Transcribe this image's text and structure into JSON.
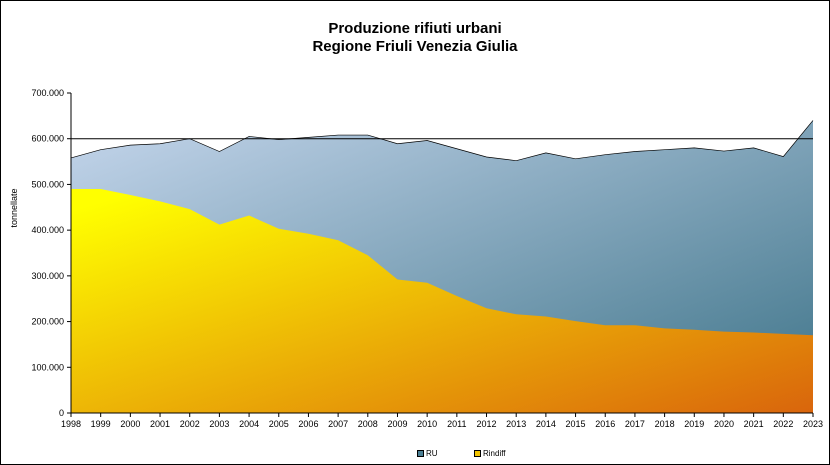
{
  "title_line1": "Produzione rifiuti urbani",
  "title_line2": "Regione Friuli Venezia Giulia",
  "colors": {
    "ru_top": "#c5d6ec",
    "ru_bottom": "#3d7388",
    "rindiff_top": "#ffff00",
    "rindiff_bottom": "#d9650c",
    "swatch_ru": "#4a7f94",
    "swatch_rindiff": "#f2c400"
  },
  "chart_data": {
    "type": "area",
    "title": "Produzione rifiuti urbani Regione Friuli Venezia Giulia",
    "xlabel": "",
    "ylabel": "tonnellate",
    "ylim": [
      0,
      700000
    ],
    "y_ticks": [
      0,
      100000,
      200000,
      300000,
      400000,
      500000,
      600000,
      700000
    ],
    "y_tick_labels": [
      "0",
      "100.000",
      "200.000",
      "300.000",
      "400.000",
      "500.000",
      "600.000",
      "700.000"
    ],
    "reference_line": 600000,
    "grid": false,
    "legend_position": "bottom",
    "categories": [
      "1998",
      "1999",
      "2000",
      "2001",
      "2002",
      "2003",
      "2004",
      "2005",
      "2006",
      "2007",
      "2008",
      "2009",
      "2010",
      "2011",
      "2012",
      "2013",
      "2014",
      "2015",
      "2016",
      "2017",
      "2018",
      "2019",
      "2020",
      "2021",
      "2022",
      "2023"
    ],
    "series": [
      {
        "name": "RU",
        "values": [
          558000,
          576000,
          586000,
          589000,
          600000,
          572000,
          605000,
          598000,
          603000,
          608000,
          608000,
          589000,
          596000,
          578000,
          560000,
          552000,
          569000,
          556000,
          565000,
          572000,
          576000,
          580000,
          573000,
          580000,
          561000,
          640000
        ]
      },
      {
        "name": "Rindiff",
        "values": [
          490000,
          490000,
          477000,
          463000,
          446000,
          412000,
          432000,
          403000,
          392000,
          378000,
          345000,
          292000,
          285000,
          256000,
          229000,
          216000,
          211000,
          201000,
          192000,
          192000,
          185000,
          182000,
          178000,
          176000,
          173000,
          170000
        ]
      }
    ]
  }
}
